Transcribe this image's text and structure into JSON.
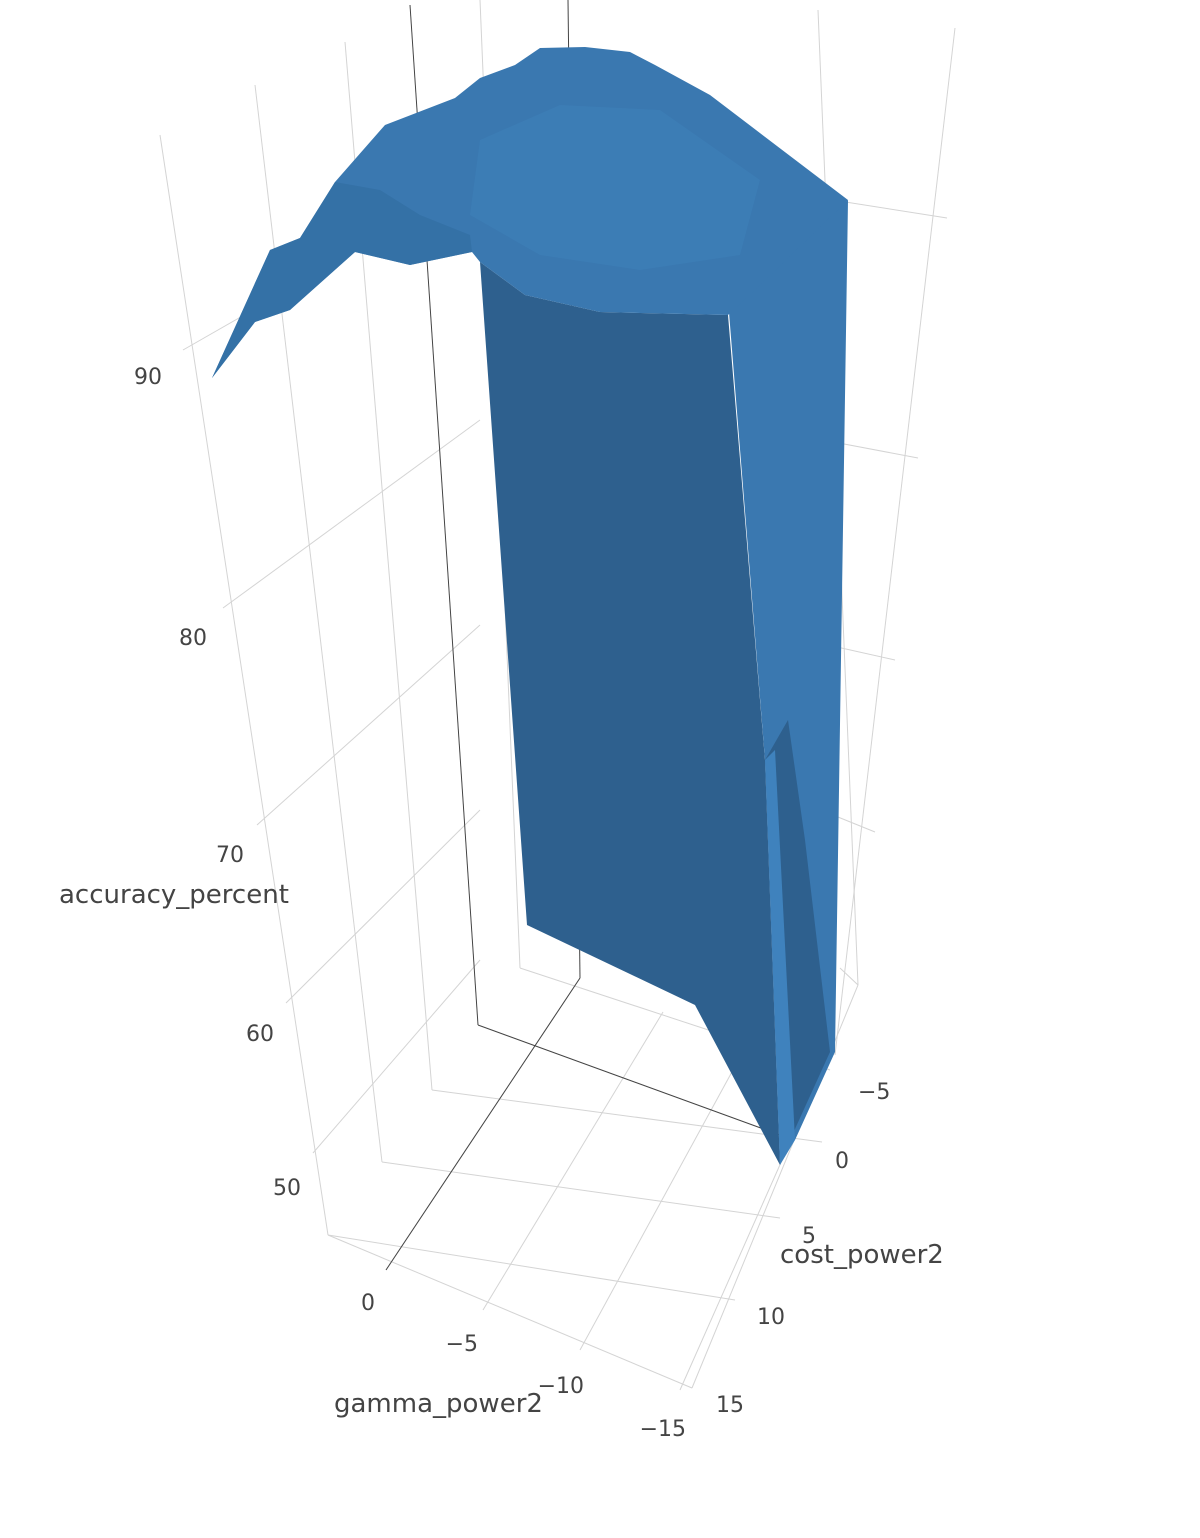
{
  "chart_data": {
    "type": "surface",
    "title": "",
    "axes": {
      "z": {
        "label": "accuracy_percent",
        "ticks": [
          50,
          60,
          70,
          80,
          90
        ]
      },
      "cost": {
        "label": "cost_power2",
        "ticks": [
          -5,
          0,
          5,
          10,
          15
        ]
      },
      "gamma": {
        "label": "gamma_power2",
        "ticks": [
          0,
          -5,
          -10,
          -15
        ]
      }
    },
    "colors": {
      "surface_light": "#3a78b0",
      "surface_dark": "#2e608e",
      "grid": "#d4d4d4",
      "axis": "#444444"
    },
    "surface_summary": {
      "accuracy_max_approx": 97,
      "accuracy_min_approx": 47,
      "shape": "high plateau near 90-97% across most of the grid, dropping steeply to ~47% at the low-cost / low-gamma corner"
    }
  }
}
